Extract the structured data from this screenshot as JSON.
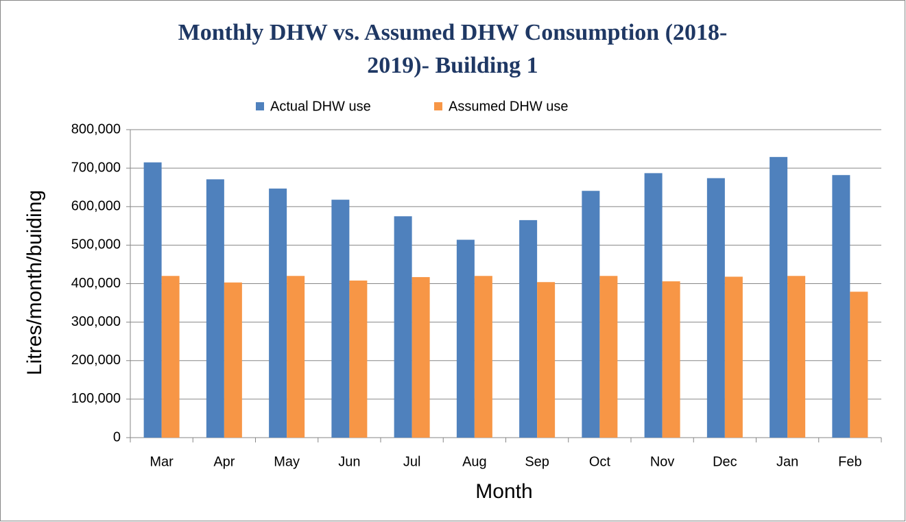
{
  "chart_data": {
    "type": "bar",
    "title": [
      "Monthly DHW  vs. Assumed DHW Consumption (2018-",
      "2019)- Building 1"
    ],
    "x_label": "Month",
    "y_label": "Litres/month/buiding",
    "categories": [
      "Mar",
      "Apr",
      "May",
      "Jun",
      "Jul",
      "Aug",
      "Sep",
      "Oct",
      "Nov",
      "Dec",
      "Jan",
      "Feb"
    ],
    "series": [
      {
        "name": "Actual DHW use",
        "color": "#4f81bd",
        "values": [
          715000,
          671000,
          647000,
          618000,
          575000,
          514000,
          565000,
          641000,
          687000,
          674000,
          729000,
          682000
        ]
      },
      {
        "name": "Assumed DHW use",
        "color": "#f79646",
        "values": [
          420000,
          403000,
          420000,
          408000,
          417000,
          420000,
          404000,
          420000,
          406000,
          418000,
          420000,
          379000
        ]
      }
    ],
    "ylim": [
      0,
      800000
    ],
    "yticks": [
      0,
      {
        "value": 100000,
        "label": "100,000"
      },
      {
        "value": 200000,
        "label": "200,000"
      },
      {
        "value": 300000,
        "label": "300,000"
      },
      {
        "value": 400000,
        "label": "400,000"
      },
      {
        "value": 500000,
        "label": "500,000"
      },
      {
        "value": 600000,
        "label": "600,000"
      },
      {
        "value": 700000,
        "label": "700,000"
      },
      {
        "value": 800000,
        "label": "800,000"
      }
    ],
    "grid": true,
    "legend": "top"
  }
}
